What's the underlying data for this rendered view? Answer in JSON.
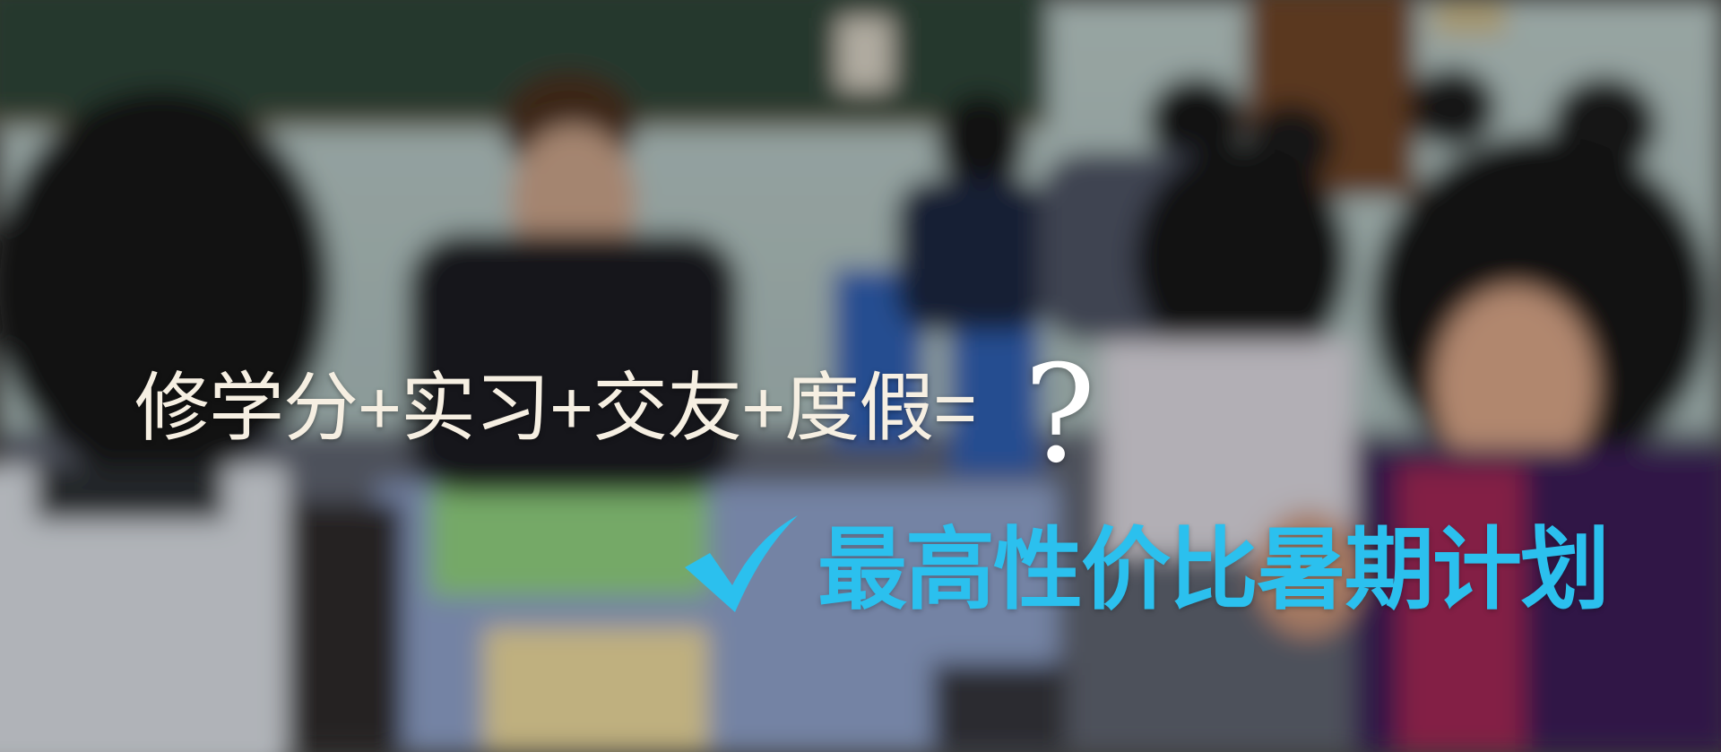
{
  "banner": {
    "headline": "修学分+实习+交友+度假=",
    "question_mark": "?",
    "slogan": "最高性价比暑期计划",
    "check_icon": "check-mark-icon",
    "colors": {
      "headline": "#f6efe2",
      "slogan": "#2bc0ee",
      "check": "#2bc0ee"
    }
  }
}
